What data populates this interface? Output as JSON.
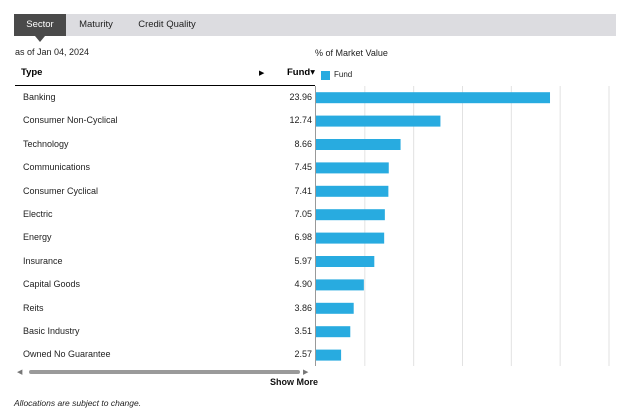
{
  "tabs": [
    {
      "label": "Sector",
      "active": true
    },
    {
      "label": "Maturity",
      "active": false
    },
    {
      "label": "Credit Quality",
      "active": false
    }
  ],
  "as_of": "as of Jan 04, 2024",
  "market_value_label": "% of Market Value",
  "table": {
    "col_type": "Type",
    "col_fund": "Fund",
    "sort_arrow": "▾",
    "expand_arrow": "▶",
    "rows": [
      {
        "name": "Banking",
        "value": "23.96"
      },
      {
        "name": "Consumer Non-Cyclical",
        "value": "12.74"
      },
      {
        "name": "Technology",
        "value": "8.66"
      },
      {
        "name": "Communications",
        "value": "7.45"
      },
      {
        "name": "Consumer Cyclical",
        "value": "7.41"
      },
      {
        "name": "Electric",
        "value": "7.05"
      },
      {
        "name": "Energy",
        "value": "6.98"
      },
      {
        "name": "Insurance",
        "value": "5.97"
      },
      {
        "name": "Capital Goods",
        "value": "4.90"
      },
      {
        "name": "Reits",
        "value": "3.86"
      },
      {
        "name": "Basic Industry",
        "value": "3.51"
      },
      {
        "name": "Owned No Guarantee",
        "value": "2.57"
      }
    ]
  },
  "legend": {
    "label": "Fund",
    "color": "#28abe0"
  },
  "chart_data": {
    "type": "bar",
    "orientation": "horizontal",
    "categories": [
      "Banking",
      "Consumer Non-Cyclical",
      "Technology",
      "Communications",
      "Consumer Cyclical",
      "Electric",
      "Energy",
      "Insurance",
      "Capital Goods",
      "Reits",
      "Basic Industry",
      "Owned No Guarantee"
    ],
    "series": [
      {
        "name": "Fund",
        "values": [
          23.96,
          12.74,
          8.66,
          7.45,
          7.41,
          7.05,
          6.98,
          5.97,
          4.9,
          3.86,
          3.51,
          2.57
        ]
      }
    ],
    "xlim": [
      0,
      30
    ],
    "grid": true,
    "legend": "top-left",
    "bar_color": "#28abe0"
  },
  "scrollbar": {
    "left_arrow": "◀",
    "right_arrow": "▶"
  },
  "show_more": "Show More",
  "footnote": "Allocations are subject to change."
}
